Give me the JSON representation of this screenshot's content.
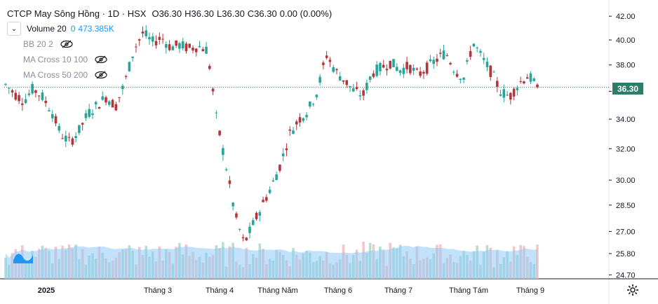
{
  "header": {
    "symbol_name": "CTCP May Sông Hồng · 1D · HSX",
    "open": "O36.30",
    "high": "H36.30",
    "low": "L36.30",
    "close": "C36.30",
    "change": "0.00 (0.00%)"
  },
  "indicators": {
    "volume_label": "Volume 20",
    "volume_val1": "0",
    "volume_val2": "473.385K",
    "bb_label": "BB 20 2",
    "ma1_label": "MA Cross 10 100",
    "ma2_label": "MA Cross 50 200"
  },
  "last_price_badge": "36.30",
  "colors": {
    "up": "#26a69a",
    "down": "#b5353a",
    "volume_area": "#90caf9",
    "last_line": "#2e7d6b"
  },
  "chart_data": {
    "type": "candlestick",
    "y_axis_ticks": [
      "42.00",
      "40.00",
      "38.00",
      "36.00",
      "34.00",
      "32.00",
      "30.00",
      "28.50",
      "27.00",
      "25.80",
      "24.70"
    ],
    "y_axis_scale": "log",
    "ylim": [
      24.5,
      42.8
    ],
    "x_axis_labels": [
      "2025",
      "Tháng 3",
      "Tháng 4",
      "Tháng Năm",
      "Tháng 6",
      "Tháng 7",
      "Tháng Tám",
      "Tháng 9"
    ],
    "last_price": 36.3,
    "close_path": [
      {
        "m": "Jan-2025-start",
        "c": 36.5
      },
      {
        "c": 35.8
      },
      {
        "c": 35.3
      },
      {
        "c": 36.2
      },
      {
        "c": 35.6
      },
      {
        "c": 34.6
      },
      {
        "c": 33.0
      },
      {
        "c": 32.4
      },
      {
        "c": 33.2
      },
      {
        "c": 34.4
      },
      {
        "c": 35.0
      },
      {
        "c": 35.6
      },
      {
        "c": 34.9
      },
      {
        "c": 36.6
      },
      {
        "c": 39.2
      },
      {
        "c": 40.6
      },
      {
        "c": 39.8
      },
      {
        "c": 40.2
      },
      {
        "c": 39.4
      },
      {
        "c": 39.6
      },
      {
        "c": 39.3
      },
      {
        "c": 39.5
      },
      {
        "c": 39.2
      },
      {
        "c": 34.0
      },
      {
        "c": 31.0
      },
      {
        "c": 28.0
      },
      {
        "c": 26.3
      },
      {
        "c": 27.4
      },
      {
        "c": 28.5
      },
      {
        "c": 29.6
      },
      {
        "c": 31.0
      },
      {
        "c": 33.0
      },
      {
        "c": 34.0
      },
      {
        "c": 34.6
      },
      {
        "c": 36.0
      },
      {
        "c": 38.8
      },
      {
        "c": 37.5
      },
      {
        "c": 36.8
      },
      {
        "c": 36.0
      },
      {
        "c": 35.7
      },
      {
        "c": 37.4
      },
      {
        "c": 37.8
      },
      {
        "c": 38.2
      },
      {
        "c": 37.6
      },
      {
        "c": 37.9
      },
      {
        "c": 37.2
      },
      {
        "c": 37.8
      },
      {
        "c": 38.4
      },
      {
        "c": 39.0
      },
      {
        "c": 37.6
      },
      {
        "c": 37.0
      },
      {
        "c": 39.8
      },
      {
        "c": 38.5
      },
      {
        "c": 37.4
      },
      {
        "c": 36.0
      },
      {
        "c": 35.6
      },
      {
        "c": 36.6
      },
      {
        "c": 37.2
      },
      {
        "c": 36.3
      }
    ],
    "volume_note": "volume histogram with moving-average area at bottom of price pane"
  }
}
